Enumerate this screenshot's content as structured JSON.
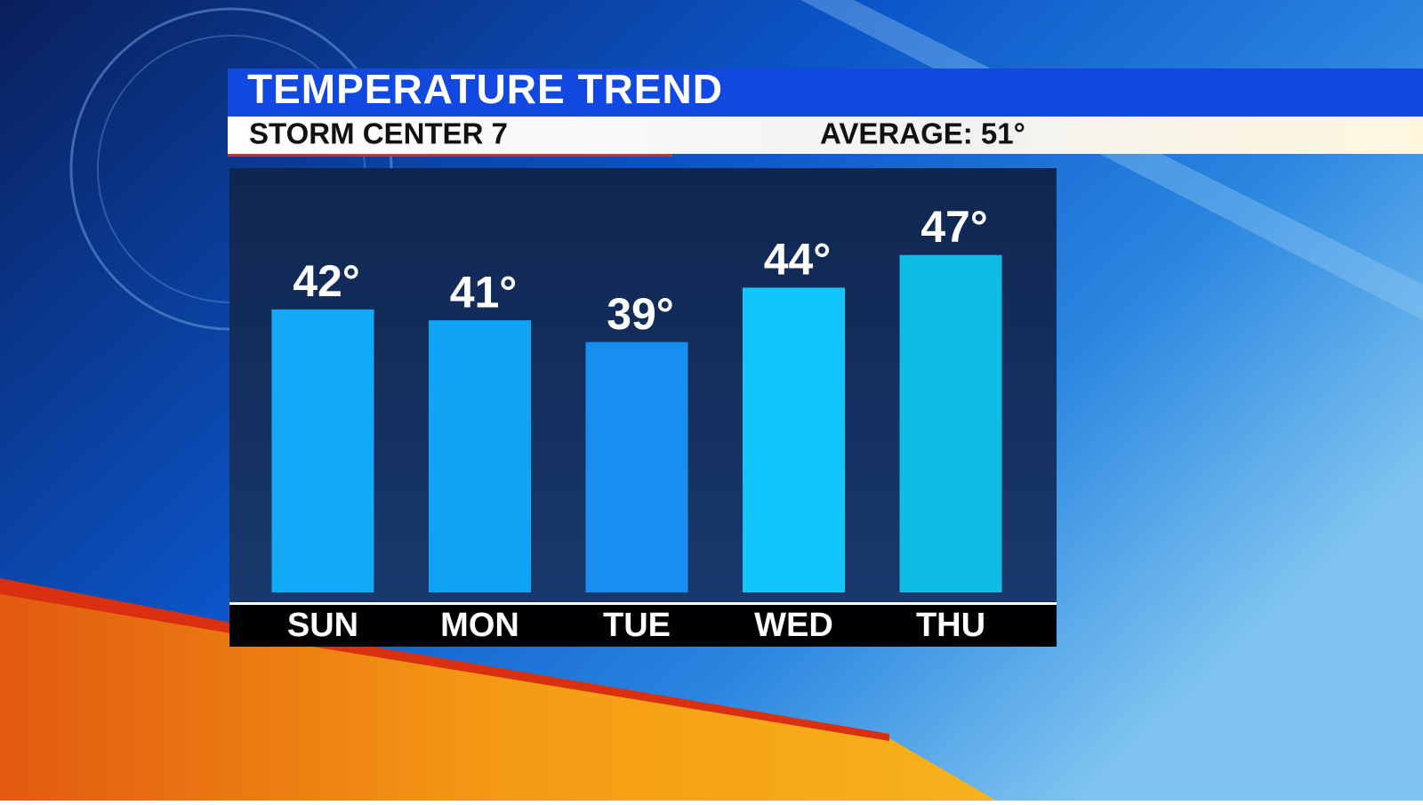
{
  "chart_data": {
    "type": "bar",
    "title": "TEMPERATURE TREND",
    "subtitle": "STORM CENTER 7",
    "annotation": "AVERAGE: 51°",
    "categories": [
      "SUN",
      "MON",
      "TUE",
      "WED",
      "THU"
    ],
    "values": [
      42,
      41,
      39,
      44,
      47
    ],
    "value_labels": [
      "42°",
      "41°",
      "39°",
      "44°",
      "47°"
    ],
    "colors": [
      "#12a9f6",
      "#10a4f6",
      "#168ff0",
      "#12c6fb",
      "#0fbce4"
    ],
    "ylim": [
      16,
      50
    ]
  }
}
